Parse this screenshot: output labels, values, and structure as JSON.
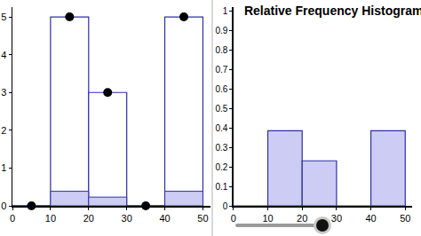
{
  "chart_data": [
    {
      "type": "histogram",
      "bins": [
        0,
        10,
        20,
        30,
        40,
        50
      ],
      "values": [
        0,
        5,
        3,
        0,
        5
      ],
      "xlim": [
        0,
        52
      ],
      "ylim": [
        0,
        5.26
      ],
      "xticks": [
        0,
        10,
        20,
        30,
        40,
        50
      ],
      "yticks": [
        0,
        1,
        2,
        3,
        4,
        5
      ],
      "marker": "circle",
      "color": "#ffffff",
      "grid": false
    },
    {
      "type": "histogram",
      "title": "Relative Frequency Histogram",
      "bins": [
        0,
        10,
        20,
        30,
        40,
        50
      ],
      "values": [
        0,
        0.385,
        0.231,
        0,
        0.385
      ],
      "xlim": [
        0,
        52
      ],
      "ylim": [
        0,
        1.02
      ],
      "xticks": [
        0,
        10,
        20,
        30,
        40,
        50
      ],
      "yticks": [
        0,
        0.1,
        0.2,
        0.3,
        0.4,
        0.5,
        0.6,
        0.7,
        0.8,
        0.9,
        1
      ],
      "color": "#ccccf5",
      "grid": false
    }
  ]
}
